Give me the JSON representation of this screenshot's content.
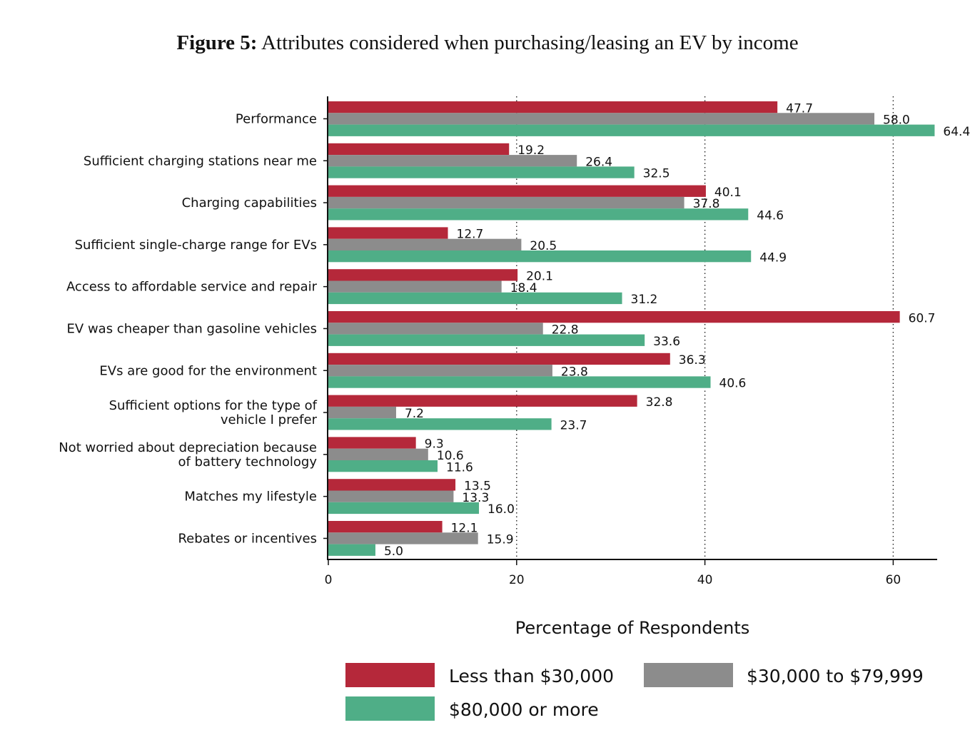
{
  "title_bold": "Figure 5:",
  "title_rest": " Attributes considered when purchasing/leasing an EV by income",
  "chart_data": {
    "type": "bar",
    "orientation": "horizontal",
    "categories": [
      [
        "Performance"
      ],
      [
        "Sufficient charging stations near me"
      ],
      [
        "Charging capabilities"
      ],
      [
        "Sufficient single-charge range for EVs"
      ],
      [
        "Access to affordable service and repair"
      ],
      [
        "EV was cheaper than gasoline vehicles"
      ],
      [
        "EVs are good for the environment"
      ],
      [
        "Sufficient options for the type of",
        "vehicle I prefer"
      ],
      [
        "Not worried about depreciation because",
        "of battery technology"
      ],
      [
        "Matches my lifestyle"
      ],
      [
        "Rebates or incentives"
      ]
    ],
    "series": [
      {
        "name": "Less than $30,000",
        "color": "#b5283a",
        "values": [
          47.7,
          19.2,
          40.1,
          12.7,
          20.1,
          60.7,
          36.3,
          32.8,
          9.3,
          13.5,
          12.1
        ]
      },
      {
        "name": "$30,000 to $79,999",
        "color": "#8c8c8c",
        "values": [
          58.0,
          26.4,
          37.8,
          20.5,
          18.4,
          22.8,
          23.8,
          7.2,
          10.6,
          13.3,
          15.9
        ]
      },
      {
        "name": "$80,000 or more",
        "color": "#4fae87",
        "values": [
          64.4,
          32.5,
          44.6,
          44.9,
          31.2,
          33.6,
          40.6,
          23.7,
          11.6,
          16.0,
          5.0
        ]
      }
    ],
    "value_labels": [
      [
        "47.7",
        "19.2",
        "40.1",
        "12.7",
        "20.1",
        "60.7",
        "36.3",
        "32.8",
        "9.3",
        "13.5",
        "12.1"
      ],
      [
        "58.0",
        "26.4",
        "37.8",
        "20.5",
        "18.4",
        "22.8",
        "23.8",
        "7.2",
        "10.6",
        "13.3",
        "15.9"
      ],
      [
        "64.4",
        "32.5",
        "44.6",
        "44.9",
        "31.2",
        "33.6",
        "40.6",
        "23.7",
        "11.6",
        "16.0",
        "5.0"
      ]
    ],
    "xlabel": "Percentage of Respondents",
    "xlim": [
      0,
      64.4
    ],
    "xticks": [
      0,
      20,
      40,
      60
    ],
    "xtick_labels": [
      "0",
      "20",
      "40",
      "60"
    ],
    "grid": "vertical dotted",
    "legend_position": "bottom"
  }
}
